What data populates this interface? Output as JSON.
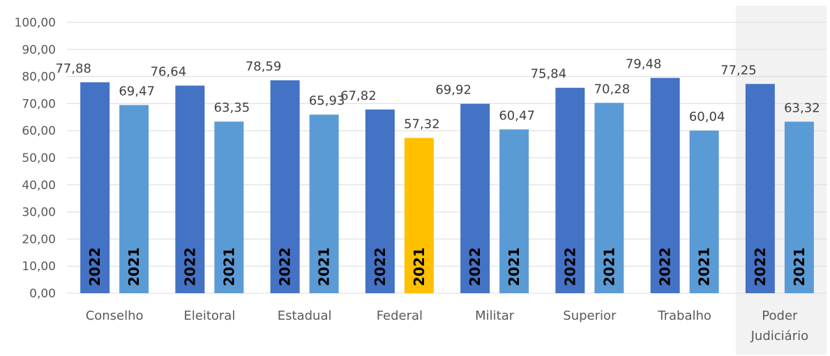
{
  "chart_data": {
    "type": "bar",
    "categories": [
      "Conselho",
      "Eleitoral",
      "Estadual",
      "Federal",
      "Militar",
      "Superior",
      "Trabalho",
      "Poder Judiciário"
    ],
    "series": [
      {
        "name": "2022",
        "values": [
          77.88,
          76.64,
          78.59,
          67.82,
          69.92,
          75.84,
          79.48,
          77.25
        ],
        "labels": [
          "77,88",
          "76,64",
          "78,59",
          "67,82",
          "69,92",
          "75,84",
          "79,48",
          "77,25"
        ],
        "color": "#4472C4"
      },
      {
        "name": "2021",
        "values": [
          69.47,
          63.35,
          65.93,
          57.32,
          60.47,
          70.28,
          60.04,
          63.32
        ],
        "labels": [
          "69,47",
          "63,35",
          "65,93",
          "57,32",
          "60,47",
          "70,28",
          "60,04",
          "63,32"
        ],
        "color": "#5B9BD5"
      }
    ],
    "highlight": {
      "series": 1,
      "category": 3,
      "color": "#FFC000"
    },
    "highlight_band": {
      "category": 7,
      "color": "#F2F2F2"
    },
    "ylim": [
      0,
      100
    ],
    "yticks": [
      "0,00",
      "10,00",
      "20,00",
      "30,00",
      "40,00",
      "50,00",
      "60,00",
      "70,00",
      "80,00",
      "90,00",
      "100,00"
    ],
    "grid": true,
    "legend": "none"
  }
}
